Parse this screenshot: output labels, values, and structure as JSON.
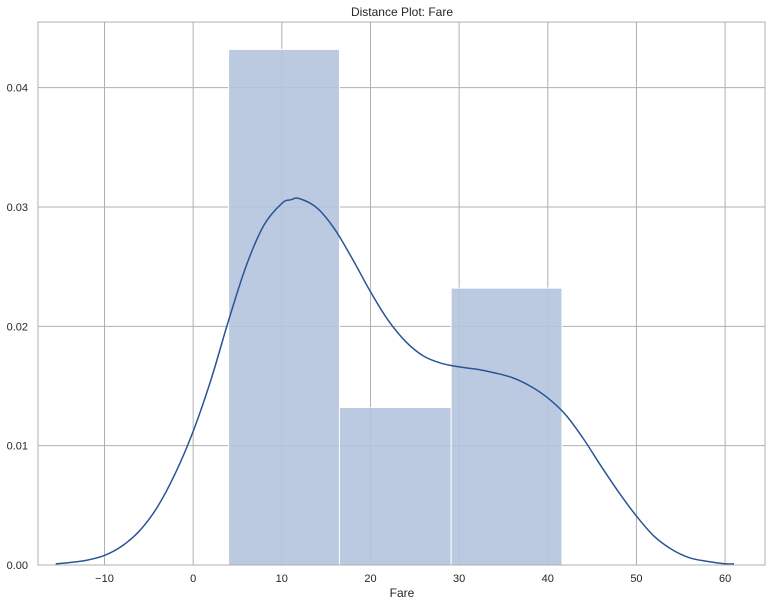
{
  "chart_data": {
    "type": "histogram",
    "title": "Distance Plot: Fare",
    "xlabel": "Fare",
    "ylabel": "",
    "xlim": [
      -17.5,
      64.5
    ],
    "ylim": [
      0,
      0.0455
    ],
    "xticks": [
      -10,
      0,
      10,
      20,
      30,
      40,
      50,
      60
    ],
    "xtick_labels": [
      "−10",
      "0",
      "10",
      "20",
      "30",
      "40",
      "50",
      "60"
    ],
    "yticks": [
      0.0,
      0.01,
      0.02,
      0.03,
      0.04
    ],
    "ytick_labels": [
      "0.00",
      "0.01",
      "0.02",
      "0.03",
      "0.04"
    ],
    "grid": true,
    "bins": [
      {
        "x0": 4.0,
        "x1": 16.5,
        "density": 0.0432
      },
      {
        "x0": 16.5,
        "x1": 29.1,
        "density": 0.0132
      },
      {
        "x0": 29.1,
        "x1": 41.6,
        "density": 0.0232
      }
    ],
    "kde": {
      "x": [
        -15.5,
        -14,
        -12,
        -10,
        -8,
        -6,
        -4,
        -2,
        0,
        2,
        4,
        6,
        8,
        10,
        11,
        12,
        14,
        16,
        18,
        20,
        22,
        24,
        26,
        28,
        30,
        32,
        34,
        36,
        38,
        40,
        42,
        44,
        46,
        48,
        50,
        52,
        54,
        56,
        58,
        60,
        61
      ],
      "y": [
        0.0001,
        0.0002,
        0.0004,
        0.0008,
        0.0016,
        0.0029,
        0.0049,
        0.0077,
        0.0112,
        0.0155,
        0.0205,
        0.0251,
        0.0285,
        0.0303,
        0.0306,
        0.0307,
        0.0299,
        0.0281,
        0.0256,
        0.0229,
        0.0205,
        0.0187,
        0.0175,
        0.0169,
        0.0166,
        0.0164,
        0.0161,
        0.0157,
        0.015,
        0.014,
        0.0126,
        0.0106,
        0.0083,
        0.0061,
        0.0041,
        0.0024,
        0.0013,
        0.0006,
        0.0003,
        0.0001,
        0.0001
      ]
    },
    "colors": {
      "bar_fill": "#b4c4de",
      "line": "#2a5496",
      "grid": "#b0b0b0",
      "text": "#262626"
    }
  }
}
